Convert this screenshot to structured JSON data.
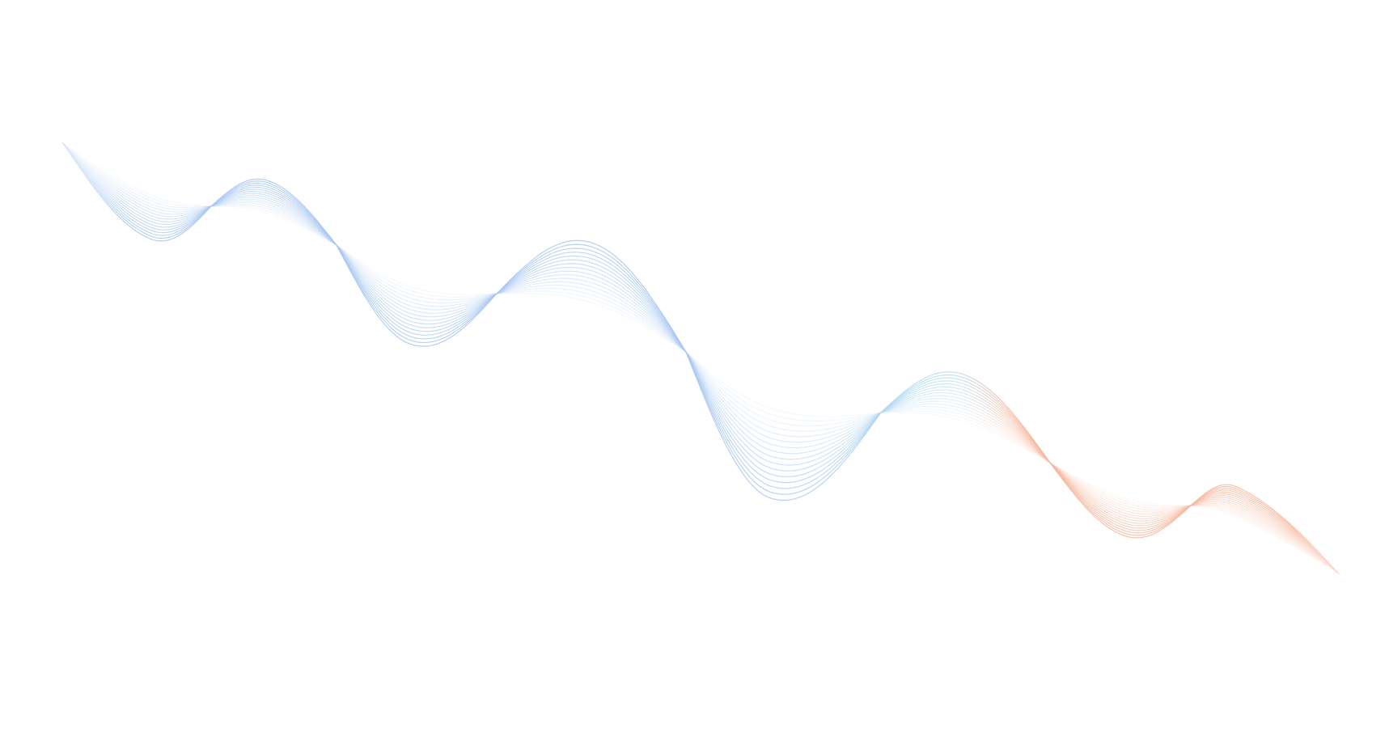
{
  "background": {
    "color": "#ffffff",
    "wave": {
      "line_count": 16,
      "colors": {
        "start": "#a9c8f2",
        "middle": "#b5e0f5",
        "end": "#f6b9a0"
      }
    }
  }
}
